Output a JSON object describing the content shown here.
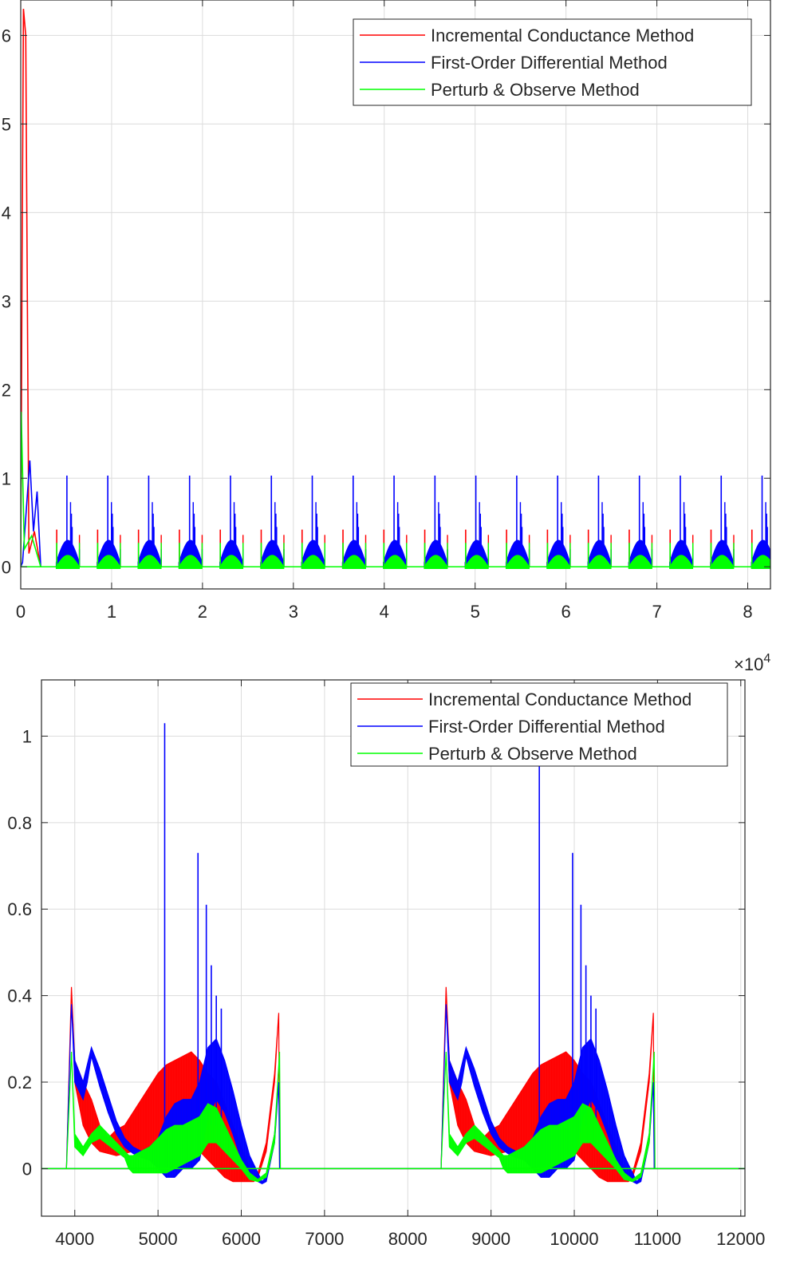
{
  "colors": {
    "incremental": "#ff0000",
    "first_order": "#0000ff",
    "perturb": "#00ff00",
    "grid": "#dcdcdc",
    "axis": "#262626"
  },
  "chart_data": [
    {
      "type": "line",
      "title": "",
      "xlabel": "",
      "ylabel": "",
      "xlim": [
        0,
        82500
      ],
      "ylim": [
        -0.25,
        6.4
      ],
      "x_exponent_label": "×10",
      "x_exponent_power": "4",
      "xticks": [
        0,
        10000,
        20000,
        30000,
        40000,
        50000,
        60000,
        70000,
        80000
      ],
      "xtick_labels": [
        "0",
        "1",
        "2",
        "3",
        "4",
        "5",
        "6",
        "7",
        "8"
      ],
      "yticks": [
        0,
        1,
        2,
        3,
        4,
        5,
        6
      ],
      "ytick_labels": [
        "0",
        "1",
        "2",
        "3",
        "4",
        "5",
        "6"
      ],
      "grid": true,
      "legend_placement": "top-right",
      "repeating_pattern": {
        "period": 4500,
        "cycles": 18,
        "start": 3900
      },
      "series": [
        {
          "name": "Incremental Conductance Method",
          "color_key": "incremental",
          "startup": [
            [
              0,
              0
            ],
            [
              150,
              3.5
            ],
            [
              300,
              6.3
            ],
            [
              550,
              6.0
            ],
            [
              900,
              0.15
            ],
            [
              1500,
              0.4
            ],
            [
              2200,
              0.0
            ]
          ],
          "cycle_peak": 0.42,
          "cycle_band": [
            0.05,
            0.25
          ]
        },
        {
          "name": "First-Order Differential Method",
          "color_key": "first_order",
          "startup": [
            [
              0,
              0
            ],
            [
              200,
              0.05
            ],
            [
              1000,
              1.2
            ],
            [
              1400,
              0.4
            ],
            [
              1800,
              0.85
            ],
            [
              2200,
              0.0
            ]
          ],
          "cycle_peak": 1.03,
          "cycle_band": [
            0.05,
            0.3
          ]
        },
        {
          "name": "Perturb & Observe Method",
          "color_key": "perturb",
          "startup": [
            [
              0,
              0
            ],
            [
              50,
              1.75
            ],
            [
              400,
              0.2
            ],
            [
              1200,
              0.35
            ],
            [
              2200,
              0.0
            ]
          ],
          "cycle_peak": 0.27,
          "cycle_band": [
            0.0,
            0.13
          ]
        }
      ]
    },
    {
      "type": "line",
      "title": "",
      "xlabel": "",
      "ylabel": "",
      "xlim": [
        3600,
        12050
      ],
      "ylim": [
        -0.11,
        1.13
      ],
      "xticks": [
        4000,
        5000,
        6000,
        7000,
        8000,
        9000,
        10000,
        11000,
        12000
      ],
      "xtick_labels": [
        "4000",
        "5000",
        "6000",
        "7000",
        "8000",
        "9000",
        "10000",
        "11000",
        "12000"
      ],
      "yticks": [
        0,
        0.2,
        0.4,
        0.6,
        0.8,
        1
      ],
      "ytick_labels": [
        "0",
        "0.2",
        "0.4",
        "0.6",
        "0.8",
        "1"
      ],
      "grid": true,
      "legend_placement": "top-right",
      "cycles_start": [
        3900,
        8400
      ],
      "series": [
        {
          "name": "Incremental Conductance Method",
          "color_key": "incremental",
          "envelope_x": [
            3900,
            3960,
            4000,
            4100,
            4200,
            4300,
            4400,
            4500,
            4600,
            4700,
            4800,
            4900,
            5000,
            5100,
            5200,
            5300,
            5400,
            5500,
            5600,
            5700,
            5800,
            5900,
            6000,
            6100,
            6150,
            6200,
            6300,
            6400,
            6450,
            6460
          ],
          "upper": [
            0,
            0.42,
            0.25,
            0.2,
            0.16,
            0.1,
            0.07,
            0.09,
            0.1,
            0.13,
            0.16,
            0.19,
            0.22,
            0.24,
            0.25,
            0.26,
            0.27,
            0.25,
            0.22,
            0.2,
            0.15,
            0.1,
            0.05,
            0.0,
            -0.02,
            -0.01,
            0.06,
            0.22,
            0.36,
            0
          ],
          "lower": [
            0,
            0.42,
            0.2,
            0.1,
            0.06,
            0.04,
            0.035,
            0.03,
            0.035,
            0.04,
            0.04,
            0.05,
            0.06,
            0.07,
            0.06,
            0.05,
            0.05,
            0.04,
            0.02,
            0.0,
            -0.02,
            -0.03,
            -0.03,
            -0.03,
            -0.03,
            -0.02,
            0.04,
            0.2,
            0.36,
            0
          ]
        },
        {
          "name": "First-Order Differential Method",
          "color_key": "first_order",
          "envelope_x": [
            3900,
            3960,
            4000,
            4100,
            4150,
            4200,
            4300,
            4400,
            4500,
            4600,
            4700,
            4800,
            4900,
            5000,
            5100,
            5200,
            5300,
            5400,
            5500,
            5600,
            5700,
            5800,
            5900,
            6000,
            6100,
            6200,
            6250,
            6300,
            6400,
            6450,
            6460
          ],
          "upper": [
            0,
            0.38,
            0.25,
            0.2,
            0.24,
            0.28,
            0.23,
            0.17,
            0.11,
            0.07,
            0.05,
            0.04,
            0.05,
            0.07,
            0.12,
            0.15,
            0.16,
            0.16,
            0.2,
            0.28,
            0.3,
            0.25,
            0.18,
            0.1,
            0.03,
            -0.01,
            -0.03,
            -0.02,
            0.08,
            0.2,
            0
          ],
          "lower": [
            0,
            0.38,
            0.2,
            0.16,
            0.2,
            0.26,
            0.19,
            0.13,
            0.08,
            0.05,
            0.035,
            0.025,
            0.02,
            0.0,
            -0.02,
            -0.02,
            0.0,
            0.0,
            0.02,
            0.12,
            0.16,
            0.13,
            0.08,
            0.02,
            -0.02,
            -0.03,
            -0.035,
            -0.03,
            0.06,
            0.2,
            0
          ],
          "spikes": [
            [
              5080,
              1.03
            ],
            [
              5480,
              0.73
            ],
            [
              5580,
              0.61
            ],
            [
              5640,
              0.47
            ],
            [
              5700,
              0.4
            ],
            [
              5760,
              0.37
            ]
          ]
        },
        {
          "name": "Perturb & Observe Method",
          "color_key": "perturb",
          "envelope_x": [
            3900,
            3960,
            4000,
            4100,
            4200,
            4300,
            4400,
            4500,
            4600,
            4650,
            4700,
            4800,
            4900,
            5000,
            5100,
            5200,
            5300,
            5400,
            5500,
            5600,
            5700,
            5800,
            5900,
            6000,
            6100,
            6200,
            6300,
            6400,
            6460,
            6470
          ],
          "upper": [
            0,
            0.27,
            0.08,
            0.05,
            0.08,
            0.1,
            0.08,
            0.06,
            0.04,
            0.03,
            0.03,
            0.04,
            0.05,
            0.07,
            0.09,
            0.1,
            0.1,
            0.11,
            0.12,
            0.15,
            0.14,
            0.1,
            0.06,
            0.02,
            -0.01,
            -0.025,
            -0.01,
            0.08,
            0.27,
            0
          ],
          "lower": [
            0,
            0.27,
            0.05,
            0.03,
            0.06,
            0.07,
            0.055,
            0.04,
            0.025,
            0.0,
            -0.01,
            -0.01,
            -0.01,
            -0.01,
            -0.01,
            0.0,
            0.01,
            0.02,
            0.03,
            0.06,
            0.06,
            0.04,
            0.02,
            0.0,
            -0.025,
            -0.03,
            -0.02,
            0.06,
            0.27,
            0
          ]
        }
      ]
    }
  ]
}
